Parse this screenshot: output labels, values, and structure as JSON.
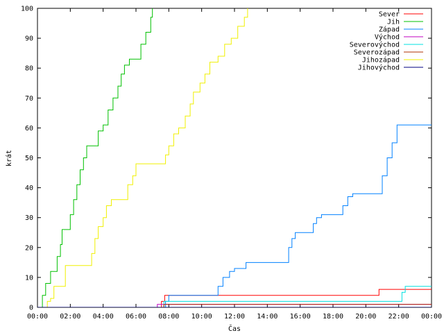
{
  "chart_data": {
    "type": "line",
    "title": "",
    "xlabel": "Čas",
    "ylabel": "krát",
    "xlim": [
      0,
      24
    ],
    "ylim": [
      0,
      100
    ],
    "grid": false,
    "legend_position": "top-right",
    "x_ticks": [
      0,
      2,
      4,
      6,
      8,
      10,
      12,
      14,
      16,
      18,
      20,
      22,
      24
    ],
    "x_tick_labels": [
      "00:00",
      "02:00",
      "04:00",
      "06:00",
      "08:00",
      "10:00",
      "12:00",
      "14:00",
      "16:00",
      "18:00",
      "20:00",
      "22:00",
      "00:00"
    ],
    "y_ticks": [
      0,
      10,
      20,
      30,
      40,
      50,
      60,
      70,
      80,
      90,
      100
    ],
    "y_tick_labels": [
      "0",
      "10",
      "20",
      "30",
      "40",
      "50",
      "60",
      "70",
      "80",
      "90",
      "100"
    ],
    "series": [
      {
        "name": "Sever",
        "color": "#ff0000",
        "points": [
          [
            0,
            0
          ],
          [
            7.3,
            0
          ],
          [
            7.55,
            2
          ],
          [
            7.75,
            4
          ],
          [
            20.7,
            4
          ],
          [
            20.8,
            6
          ],
          [
            24,
            6
          ]
        ]
      },
      {
        "name": "Jih",
        "color": "#00c000",
        "points": [
          [
            0,
            0
          ],
          [
            0.15,
            0
          ],
          [
            0.3,
            4
          ],
          [
            0.5,
            8
          ],
          [
            0.7,
            8
          ],
          [
            0.8,
            12
          ],
          [
            1.0,
            12
          ],
          [
            1.2,
            17
          ],
          [
            1.4,
            21
          ],
          [
            1.5,
            26
          ],
          [
            1.8,
            26
          ],
          [
            2.0,
            31
          ],
          [
            2.2,
            36
          ],
          [
            2.4,
            41
          ],
          [
            2.6,
            46
          ],
          [
            2.8,
            50
          ],
          [
            3.0,
            54
          ],
          [
            3.5,
            54
          ],
          [
            3.7,
            59
          ],
          [
            4.0,
            61
          ],
          [
            4.3,
            66
          ],
          [
            4.6,
            70
          ],
          [
            4.9,
            74
          ],
          [
            5.1,
            78
          ],
          [
            5.3,
            81
          ],
          [
            5.6,
            83
          ],
          [
            6.0,
            83
          ],
          [
            6.3,
            88
          ],
          [
            6.6,
            92
          ],
          [
            6.9,
            97
          ],
          [
            7.0,
            100
          ]
        ]
      },
      {
        "name": "Západ",
        "color": "#0080ff",
        "points": [
          [
            0,
            0
          ],
          [
            7.6,
            0
          ],
          [
            7.8,
            2
          ],
          [
            8.0,
            4
          ],
          [
            10.8,
            4
          ],
          [
            11.0,
            7
          ],
          [
            11.3,
            10
          ],
          [
            11.7,
            12
          ],
          [
            12.0,
            13
          ],
          [
            12.6,
            13
          ],
          [
            12.7,
            15
          ],
          [
            15.0,
            15
          ],
          [
            15.3,
            20
          ],
          [
            15.5,
            23
          ],
          [
            15.7,
            25
          ],
          [
            16.5,
            25
          ],
          [
            16.8,
            28
          ],
          [
            17.0,
            30
          ],
          [
            17.3,
            31
          ],
          [
            18.2,
            31
          ],
          [
            18.6,
            34
          ],
          [
            18.9,
            37
          ],
          [
            19.2,
            38
          ],
          [
            20.8,
            38
          ],
          [
            21.0,
            44
          ],
          [
            21.3,
            50
          ],
          [
            21.6,
            55
          ],
          [
            21.9,
            61
          ],
          [
            24,
            61
          ]
        ]
      },
      {
        "name": "Východ",
        "color": "#c000c0",
        "points": [
          [
            0,
            0
          ],
          [
            7.2,
            0
          ],
          [
            7.3,
            1
          ],
          [
            24,
            1
          ]
        ]
      },
      {
        "name": "Severovýchod",
        "color": "#00e0e0",
        "points": [
          [
            0,
            0
          ],
          [
            7.6,
            0
          ],
          [
            7.7,
            2
          ],
          [
            21.9,
            2
          ],
          [
            22.2,
            5
          ],
          [
            22.4,
            7
          ],
          [
            24,
            7
          ]
        ]
      },
      {
        "name": "Severozápad",
        "color": "#b03000",
        "points": [
          [
            0,
            0
          ],
          [
            7.6,
            0
          ],
          [
            7.7,
            1
          ],
          [
            24,
            1
          ]
        ]
      },
      {
        "name": "Jihozápad",
        "color": "#f0f000",
        "points": [
          [
            0,
            0
          ],
          [
            0.4,
            0
          ],
          [
            0.6,
            2
          ],
          [
            0.8,
            3
          ],
          [
            1.0,
            7
          ],
          [
            1.5,
            7
          ],
          [
            1.7,
            14
          ],
          [
            3.0,
            14
          ],
          [
            3.3,
            18
          ],
          [
            3.5,
            23
          ],
          [
            3.7,
            27
          ],
          [
            4.0,
            30
          ],
          [
            4.2,
            34
          ],
          [
            4.5,
            36
          ],
          [
            5.2,
            36
          ],
          [
            5.5,
            41
          ],
          [
            5.8,
            44
          ],
          [
            6.0,
            48
          ],
          [
            7.6,
            48
          ],
          [
            7.8,
            51
          ],
          [
            8.0,
            54
          ],
          [
            8.3,
            58
          ],
          [
            8.6,
            60
          ],
          [
            9.0,
            64
          ],
          [
            9.3,
            68
          ],
          [
            9.5,
            72
          ],
          [
            9.9,
            75
          ],
          [
            10.2,
            78
          ],
          [
            10.5,
            82
          ],
          [
            11.0,
            84
          ],
          [
            11.4,
            88
          ],
          [
            11.8,
            90
          ],
          [
            12.2,
            94
          ],
          [
            12.6,
            97
          ],
          [
            12.8,
            100
          ]
        ]
      },
      {
        "name": "Jihovýchod",
        "color": "#000080",
        "points": [
          [
            0,
            0
          ],
          [
            24,
            0
          ]
        ]
      }
    ]
  }
}
